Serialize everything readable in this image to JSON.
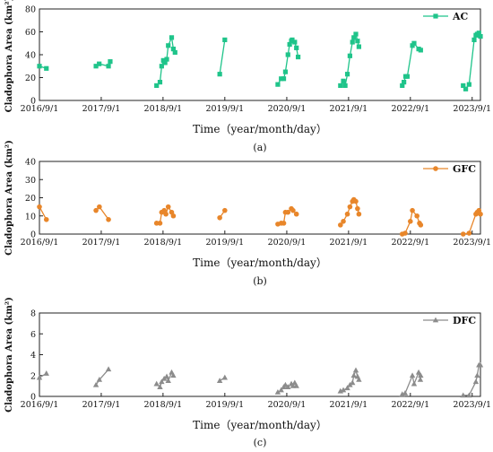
{
  "chart_data": [
    {
      "type": "line",
      "panel_label": "(a)",
      "ylabel": "Cladophora Area (km²)",
      "xlabel": "Time（year/month/day）",
      "xtick_labels": [
        "2016/9/1",
        "2017/9/1",
        "2018/9/1",
        "2019/9/1",
        "2020/9/1",
        "2021/9/1",
        "2022/9/1",
        "2023/9/1"
      ],
      "xlim": [
        "2016-09-01",
        "2023-10-20"
      ],
      "ylim": [
        0,
        80
      ],
      "yticks": [
        0,
        20,
        40,
        60,
        80
      ],
      "grid": false,
      "legend_position": "top-right",
      "series": [
        {
          "name": "AC",
          "color": "#1fc48a",
          "marker": "square",
          "segments": [
            [
              [
                "2016-09-01",
                30
              ],
              [
                "2016-10-12",
                28
              ]
            ],
            [
              [
                "2017-08-01",
                30
              ],
              [
                "2017-08-20",
                32
              ],
              [
                "2017-10-14",
                30
              ],
              [
                "2017-10-24",
                34
              ]
            ],
            [
              [
                "2018-07-25",
                13
              ],
              [
                "2018-08-14",
                16
              ],
              [
                "2018-08-24",
                30
              ],
              [
                "2018-09-03",
                35
              ],
              [
                "2018-09-13",
                33
              ],
              [
                "2018-09-23",
                36
              ],
              [
                "2018-10-02",
                48
              ],
              [
                "2018-10-22",
                55
              ],
              [
                "2018-11-01",
                45
              ],
              [
                "2018-11-11",
                42
              ]
            ],
            [
              [
                "2019-08-02",
                23
              ],
              [
                "2019-09-01",
                53
              ]
            ],
            [
              [
                "2020-07-10",
                14
              ],
              [
                "2020-07-30",
                19
              ],
              [
                "2020-08-14",
                19
              ],
              [
                "2020-08-24",
                25
              ],
              [
                "2020-09-08",
                40
              ],
              [
                "2020-09-18",
                49
              ],
              [
                "2020-09-28",
                52
              ],
              [
                "2020-10-03",
                53
              ],
              [
                "2020-10-18",
                51
              ],
              [
                "2020-10-28",
                46
              ],
              [
                "2020-11-07",
                38
              ]
            ],
            [
              [
                "2021-07-15",
                13
              ],
              [
                "2021-08-01",
                17
              ],
              [
                "2021-08-12",
                13
              ],
              [
                "2021-08-25",
                23
              ],
              [
                "2021-09-09",
                39
              ],
              [
                "2021-09-24",
                51
              ],
              [
                "2021-10-02",
                55
              ],
              [
                "2021-10-14",
                58
              ],
              [
                "2021-10-24",
                52
              ],
              [
                "2021-11-01",
                47
              ]
            ],
            [
              [
                "2022-07-15",
                13
              ],
              [
                "2022-07-25",
                16
              ],
              [
                "2022-08-04",
                21
              ],
              [
                "2022-08-14",
                21
              ],
              [
                "2022-09-13",
                48
              ],
              [
                "2022-09-23",
                50
              ],
              [
                "2022-10-20",
                45
              ],
              [
                "2022-11-01",
                44
              ]
            ],
            [
              [
                "2023-07-10",
                13
              ],
              [
                "2023-07-25",
                10
              ],
              [
                "2023-08-14",
                14
              ],
              [
                "2023-09-13",
                53
              ],
              [
                "2023-09-23",
                57
              ],
              [
                "2023-10-01",
                58
              ],
              [
                "2023-10-11",
                59
              ],
              [
                "2023-10-20",
                56
              ]
            ]
          ]
        }
      ]
    },
    {
      "type": "line",
      "panel_label": "(b)",
      "ylabel": "Cladophora Area (km²)",
      "xlabel": "Time（year/month/day）",
      "xtick_labels": [
        "2016/9/1",
        "2017/9/1",
        "2018/9/1",
        "2019/9/1",
        "2020/9/1",
        "2021/9/1",
        "2022/9/1",
        "2023/9/1"
      ],
      "xlim": [
        "2016-09-01",
        "2023-10-20"
      ],
      "ylim": [
        0,
        40
      ],
      "yticks": [
        0,
        10,
        20,
        30,
        40
      ],
      "grid": false,
      "legend_position": "top-right",
      "series": [
        {
          "name": "GFC",
          "color": "#e8862a",
          "marker": "circle",
          "segments": [
            [
              [
                "2016-09-01",
                15
              ],
              [
                "2016-10-12",
                8
              ]
            ],
            [
              [
                "2017-08-01",
                13
              ],
              [
                "2017-08-21",
                15
              ],
              [
                "2017-10-14",
                8
              ]
            ],
            [
              [
                "2018-07-25",
                6
              ],
              [
                "2018-08-14",
                6
              ],
              [
                "2018-08-24",
                12
              ],
              [
                "2018-09-08",
                13
              ],
              [
                "2018-09-18",
                11
              ],
              [
                "2018-10-02",
                15
              ],
              [
                "2018-10-22",
                12
              ],
              [
                "2018-11-01",
                10
              ]
            ],
            [
              [
                "2019-08-02",
                9
              ],
              [
                "2019-09-01",
                13
              ]
            ],
            [
              [
                "2020-07-10",
                5.5
              ],
              [
                "2020-07-30",
                6
              ],
              [
                "2020-08-14",
                6
              ],
              [
                "2020-08-24",
                12
              ],
              [
                "2020-09-08",
                12
              ],
              [
                "2020-09-28",
                14
              ],
              [
                "2020-10-08",
                13
              ],
              [
                "2020-10-28",
                11
              ]
            ],
            [
              [
                "2021-07-15",
                5
              ],
              [
                "2021-08-01",
                7
              ],
              [
                "2021-08-25",
                11
              ],
              [
                "2021-09-09",
                15
              ],
              [
                "2021-09-24",
                18
              ],
              [
                "2021-10-02",
                19
              ],
              [
                "2021-10-14",
                18
              ],
              [
                "2021-10-24",
                14
              ],
              [
                "2021-11-01",
                11
              ]
            ],
            [
              [
                "2022-07-15",
                0
              ],
              [
                "2022-08-01",
                0.5
              ],
              [
                "2022-09-01",
                7
              ],
              [
                "2022-09-13",
                13
              ],
              [
                "2022-10-10",
                10
              ],
              [
                "2022-10-25",
                6
              ],
              [
                "2022-11-01",
                5
              ]
            ],
            [
              [
                "2023-07-10",
                0
              ],
              [
                "2023-08-14",
                0.5
              ],
              [
                "2023-09-23",
                11
              ],
              [
                "2023-10-01",
                12
              ],
              [
                "2023-10-11",
                13
              ],
              [
                "2023-10-20",
                11
              ]
            ]
          ]
        }
      ]
    },
    {
      "type": "line",
      "panel_label": "(c)",
      "ylabel": "Cladophora Area (km²)",
      "xlabel": "Time（year/month/day）",
      "xtick_labels": [
        "2016/9/1",
        "2017/9/1",
        "2018/9/1",
        "2019/9/1",
        "2020/9/1",
        "2021/9/1",
        "2022/9/1",
        "2023/9/1"
      ],
      "xlim": [
        "2016-09-01",
        "2023-10-20"
      ],
      "ylim": [
        0,
        8
      ],
      "yticks": [
        0,
        2,
        4,
        6,
        8
      ],
      "grid": false,
      "legend_position": "top-right",
      "series": [
        {
          "name": "DFC",
          "color": "#8c8c8c",
          "marker": "triangle",
          "segments": [
            [
              [
                "2016-09-01",
                1.8
              ],
              [
                "2016-10-12",
                2.2
              ]
            ],
            [
              [
                "2017-08-01",
                1.1
              ],
              [
                "2017-08-21",
                1.6
              ],
              [
                "2017-10-14",
                2.6
              ]
            ],
            [
              [
                "2018-07-25",
                1.2
              ],
              [
                "2018-08-14",
                0.9
              ],
              [
                "2018-08-24",
                1.4
              ],
              [
                "2018-09-08",
                1.7
              ],
              [
                "2018-09-23",
                1.9
              ],
              [
                "2018-10-02",
                1.5
              ],
              [
                "2018-10-22",
                2.3
              ],
              [
                "2018-11-01",
                2.0
              ]
            ],
            [
              [
                "2019-08-02",
                1.5
              ],
              [
                "2019-09-01",
                1.8
              ]
            ],
            [
              [
                "2020-07-10",
                0.4
              ],
              [
                "2020-07-30",
                0.6
              ],
              [
                "2020-08-14",
                0.9
              ],
              [
                "2020-08-24",
                1.1
              ],
              [
                "2020-09-08",
                0.9
              ],
              [
                "2020-09-28",
                1.2
              ],
              [
                "2020-10-08",
                1.0
              ],
              [
                "2020-10-18",
                1.3
              ],
              [
                "2020-10-28",
                1.0
              ]
            ],
            [
              [
                "2021-07-15",
                0.5
              ],
              [
                "2021-08-01",
                0.6
              ],
              [
                "2021-08-25",
                0.8
              ],
              [
                "2021-09-09",
                1.1
              ],
              [
                "2021-09-24",
                1.3
              ],
              [
                "2021-10-02",
                2.0
              ],
              [
                "2021-10-14",
                2.5
              ],
              [
                "2021-10-24",
                1.9
              ],
              [
                "2021-11-01",
                1.6
              ]
            ],
            [
              [
                "2022-07-15",
                0.2
              ],
              [
                "2022-08-01",
                0.3
              ],
              [
                "2022-09-13",
                2.0
              ],
              [
                "2022-09-23",
                1.2
              ],
              [
                "2022-10-20",
                2.3
              ],
              [
                "2022-10-30",
                1.6
              ],
              [
                "2022-11-01",
                2.0
              ]
            ],
            [
              [
                "2023-07-10",
                0.1
              ],
              [
                "2023-08-14",
                0.1
              ],
              [
                "2023-09-23",
                1.4
              ],
              [
                "2023-10-01",
                2.0
              ],
              [
                "2023-10-11",
                3.0
              ],
              [
                "2023-10-20",
                3.0
              ]
            ]
          ]
        }
      ]
    }
  ]
}
